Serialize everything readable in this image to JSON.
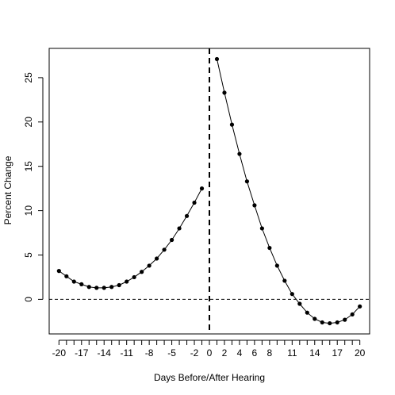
{
  "chart_data": {
    "type": "line",
    "title": "",
    "xlabel": "Days Before/After Hearing",
    "ylabel": "Percent Change",
    "xlim": [
      -21.3,
      21.3
    ],
    "ylim": [
      -3.9,
      28.3
    ],
    "x_ticks": [
      -20,
      -17,
      -14,
      -11,
      -8,
      -5,
      -2,
      0,
      2,
      4,
      6,
      8,
      11,
      14,
      17,
      20
    ],
    "y_ticks": [
      0,
      5,
      10,
      15,
      20,
      25
    ],
    "grid": false,
    "legend": "none",
    "reference_lines": [
      {
        "axis": "x",
        "value": 0,
        "style": "dashed"
      },
      {
        "axis": "y",
        "value": 0,
        "style": "dashed"
      }
    ],
    "series": [
      {
        "x": [
          -20,
          -19,
          -18,
          -17,
          -16,
          -15,
          -14,
          -13,
          -12,
          -11,
          -10,
          -9,
          -8,
          -7,
          -6,
          -5,
          -4,
          -3,
          -2,
          -1
        ],
        "y": [
          3.2,
          2.6,
          2.0,
          1.7,
          1.4,
          1.3,
          1.3,
          1.4,
          1.6,
          2.0,
          2.5,
          3.1,
          3.8,
          4.6,
          5.6,
          6.7,
          8.0,
          9.4,
          10.9,
          12.5
        ]
      },
      {
        "x": [
          1,
          2,
          3,
          4,
          5,
          6,
          7,
          8,
          9,
          10,
          11,
          12,
          13,
          14,
          15,
          16,
          17,
          18,
          19,
          20
        ],
        "y": [
          27.1,
          23.3,
          19.7,
          16.4,
          13.3,
          10.6,
          8.0,
          5.8,
          3.8,
          2.1,
          0.6,
          -0.5,
          -1.5,
          -2.2,
          -2.6,
          -2.7,
          -2.6,
          -2.3,
          -1.7,
          -0.8
        ]
      }
    ],
    "colors": {
      "line": "#000000",
      "marker": "#000000"
    }
  }
}
